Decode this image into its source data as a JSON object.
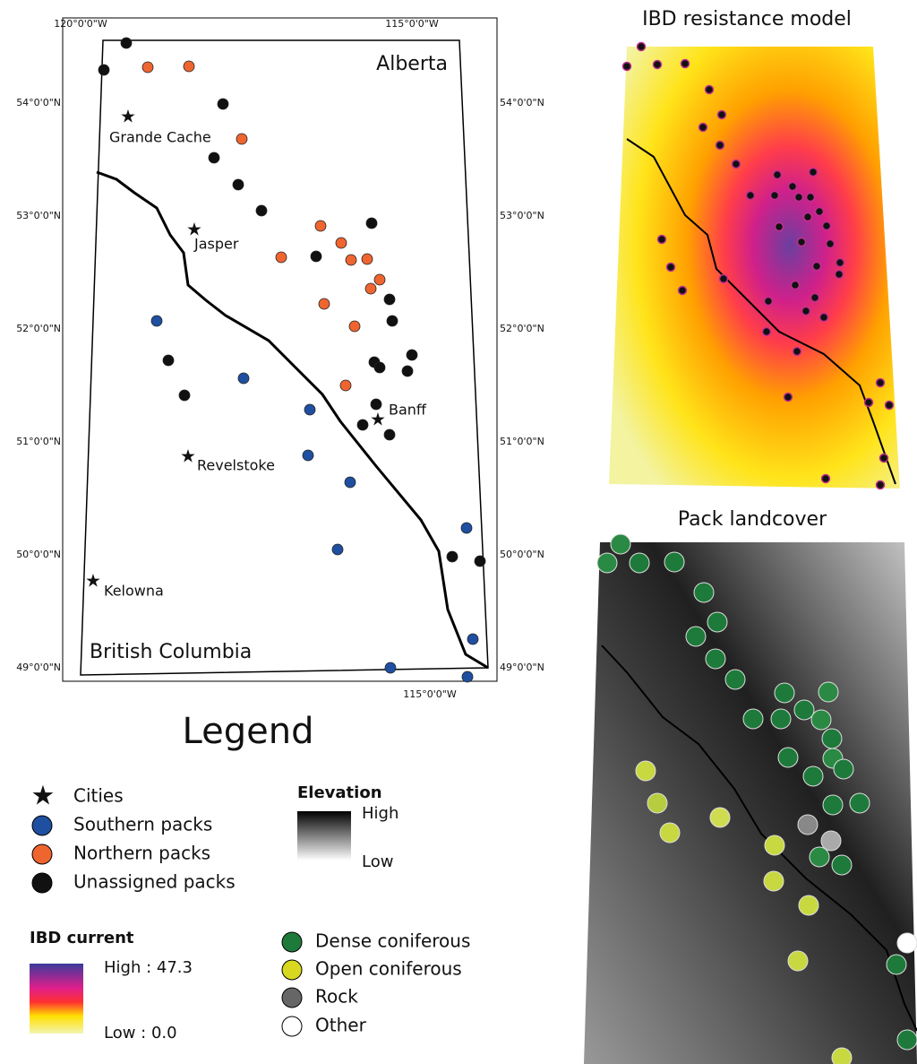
{
  "main_map": {
    "x_labels": [
      "120°0'0\"W",
      "115°0'0\"W"
    ],
    "y_labels": [
      "54°0'0\"N",
      "53°0'0\"N",
      "52°0'0\"N",
      "51°0'0\"N",
      "50°0'0\"N",
      "49°0'0\"N"
    ],
    "regions": [
      "Alberta",
      "British Columbia"
    ],
    "cities": [
      "Grande Cache",
      "Jasper",
      "Banff",
      "Revelstoke",
      "Kelowna"
    ]
  },
  "panels": [
    "IBD resistance model",
    "Pack landcover"
  ],
  "legend": {
    "title": "Legend",
    "packs": [
      "Cities",
      "Southern packs",
      "Northern packs",
      "Unassigned packs"
    ],
    "elevation": {
      "title": "Elevation",
      "high": "High",
      "low": "Low"
    },
    "ibd": {
      "title": "IBD current",
      "high": "High : 47.3",
      "low": "Low : 0.0"
    },
    "landcover": [
      "Dense coniferous",
      "Open coniferous",
      "Rock",
      "Other"
    ]
  }
}
